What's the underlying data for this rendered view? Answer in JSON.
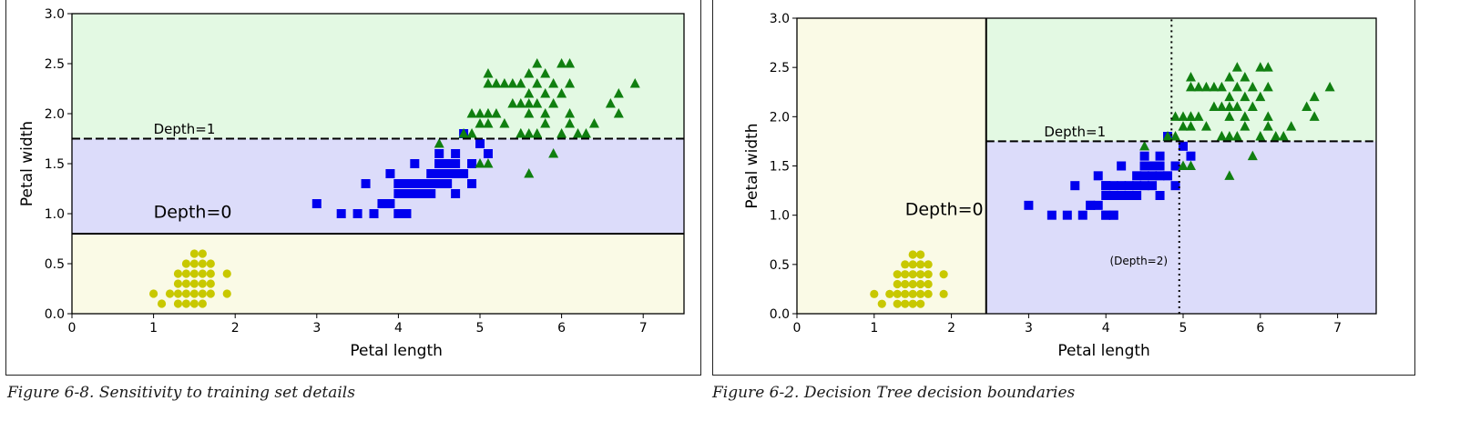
{
  "captions": {
    "left": "Figure 6-8. Sensitivity to training set details",
    "right": "Figure 6-2. Decision Tree decision boundaries"
  },
  "colors": {
    "setosa_region": "#fafae6",
    "versicolor_region": "#dcdcfa",
    "virginica_region": "#e3f9e3",
    "setosa_marker": "#c8c800",
    "versicolor_marker": "#0000ee",
    "virginica_marker": "#107f10"
  },
  "chart_data": [
    {
      "type": "scatter",
      "xlabel": "Petal length",
      "ylabel": "Petal width",
      "xlim": [
        0,
        7.5
      ],
      "ylim": [
        0,
        3.0
      ],
      "xticks": [
        "0",
        "1",
        "2",
        "3",
        "4",
        "5",
        "6",
        "7"
      ],
      "yticks": [
        "0.0",
        "0.5",
        "1.0",
        "1.5",
        "2.0",
        "2.5",
        "3.0"
      ],
      "grid": false,
      "regions": [
        {
          "class": "setosa",
          "x": [
            0,
            7.5
          ],
          "y": [
            0,
            0.8
          ]
        },
        {
          "class": "versicolor",
          "x": [
            0,
            7.5
          ],
          "y": [
            0.8,
            1.75
          ]
        },
        {
          "class": "virginica",
          "x": [
            0,
            7.5
          ],
          "y": [
            1.75,
            3.0
          ]
        }
      ],
      "boundaries": [
        {
          "orientation": "horizontal",
          "value": 0.8,
          "style": "solid",
          "label": "Depth=0",
          "label_at": [
            1.0,
            0.96
          ],
          "label_size": "large"
        },
        {
          "orientation": "horizontal",
          "value": 1.75,
          "style": "dashed",
          "label": "Depth=1",
          "label_at": [
            1.0,
            1.8
          ],
          "label_size": "small"
        }
      ],
      "series": [
        {
          "class": "setosa",
          "marker": "circle",
          "x": [
            1.0,
            1.1,
            1.2,
            1.3,
            1.3,
            1.4,
            1.4,
            1.4,
            1.5,
            1.5,
            1.5,
            1.6,
            1.6,
            1.7,
            1.7,
            1.3,
            1.4,
            1.5,
            1.6,
            1.7,
            1.9,
            1.9,
            1.4,
            1.5,
            1.6,
            1.7,
            1.6,
            1.3,
            1.5,
            1.6
          ],
          "y": [
            0.2,
            0.1,
            0.2,
            0.2,
            0.3,
            0.2,
            0.3,
            0.1,
            0.2,
            0.1,
            0.3,
            0.2,
            0.4,
            0.2,
            0.3,
            0.4,
            0.4,
            0.4,
            0.3,
            0.5,
            0.2,
            0.4,
            0.5,
            0.5,
            0.5,
            0.4,
            0.6,
            0.1,
            0.6,
            0.1
          ]
        },
        {
          "class": "versicolor",
          "marker": "square",
          "x": [
            3.0,
            3.3,
            3.5,
            3.6,
            3.7,
            3.8,
            3.9,
            3.9,
            4.0,
            4.0,
            4.0,
            4.0,
            4.1,
            4.1,
            4.1,
            4.2,
            4.2,
            4.3,
            4.3,
            4.4,
            4.4,
            4.4,
            4.5,
            4.5,
            4.5,
            4.5,
            4.5,
            4.6,
            4.6,
            4.6,
            4.7,
            4.7,
            4.7,
            4.7,
            4.8,
            4.8,
            4.9,
            4.9,
            5.0,
            5.1,
            4.2,
            4.0,
            3.8,
            4.1
          ],
          "y": [
            1.1,
            1.0,
            1.0,
            1.3,
            1.0,
            1.1,
            1.1,
            1.4,
            1.0,
            1.2,
            1.3,
            1.3,
            1.0,
            1.3,
            1.2,
            1.3,
            1.5,
            1.3,
            1.2,
            1.3,
            1.4,
            1.2,
            1.5,
            1.3,
            1.6,
            1.5,
            1.4,
            1.3,
            1.4,
            1.5,
            1.4,
            1.2,
            1.6,
            1.5,
            1.8,
            1.4,
            1.5,
            1.3,
            1.7,
            1.6,
            1.2,
            1.0,
            1.1,
            1.0
          ]
        },
        {
          "class": "virginica",
          "marker": "triangle",
          "x": [
            4.5,
            4.8,
            4.9,
            5.0,
            5.1,
            5.1,
            5.1,
            5.1,
            5.2,
            5.3,
            5.4,
            5.5,
            5.6,
            5.6,
            5.7,
            5.8,
            5.9,
            6.0,
            6.1,
            6.3,
            6.6,
            6.7,
            6.9,
            5.0,
            5.2,
            5.4,
            5.6,
            5.8,
            6.0,
            6.1,
            5.5,
            5.7,
            5.8,
            5.9,
            6.0,
            6.1,
            5.6,
            5.7,
            5.1,
            4.9,
            5.0,
            5.3,
            5.5,
            5.6,
            6.4,
            6.7,
            5.8,
            6.2,
            5.9,
            5.5,
            5.1,
            6.1,
            5.6,
            5.7
          ],
          "y": [
            1.7,
            1.8,
            1.8,
            2.0,
            2.4,
            2.3,
            1.9,
            1.5,
            2.3,
            2.3,
            2.1,
            2.1,
            2.2,
            1.4,
            2.5,
            2.2,
            2.3,
            2.5,
            2.5,
            1.8,
            2.1,
            2.2,
            2.3,
            1.5,
            2.0,
            2.3,
            2.4,
            2.4,
            1.8,
            2.3,
            2.3,
            2.1,
            2.0,
            2.1,
            2.2,
            1.9,
            2.0,
            2.3,
            2.0,
            2.0,
            1.9,
            1.9,
            1.8,
            1.8,
            1.9,
            2.0,
            1.9,
            1.8,
            1.6,
            1.8,
            2.0,
            2.0,
            2.1,
            1.8
          ]
        }
      ]
    },
    {
      "type": "scatter",
      "xlabel": "Petal length",
      "ylabel": "Petal width",
      "xlim": [
        0,
        7.5
      ],
      "ylim": [
        0,
        3.0
      ],
      "xticks": [
        "0",
        "1",
        "2",
        "3",
        "4",
        "5",
        "6",
        "7"
      ],
      "yticks": [
        "0.0",
        "0.5",
        "1.0",
        "1.5",
        "2.0",
        "2.5",
        "3.0"
      ],
      "grid": false,
      "regions": [
        {
          "class": "setosa",
          "x": [
            0,
            2.45
          ],
          "y": [
            0,
            3.0
          ]
        },
        {
          "class": "versicolor",
          "x": [
            2.45,
            7.5
          ],
          "y": [
            0,
            1.75
          ]
        },
        {
          "class": "virginica",
          "x": [
            2.45,
            7.5
          ],
          "y": [
            1.75,
            3.0
          ]
        }
      ],
      "boundaries": [
        {
          "orientation": "vertical",
          "value": 2.45,
          "range": [
            0,
            3.0
          ],
          "style": "solid",
          "label": "Depth=0",
          "label_at": [
            1.4,
            1.0
          ],
          "label_size": "large"
        },
        {
          "orientation": "horizontal",
          "value": 1.75,
          "range": [
            2.45,
            7.5
          ],
          "style": "dashed",
          "label": "Depth=1",
          "label_at": [
            3.2,
            1.8
          ],
          "label_size": "small"
        },
        {
          "orientation": "vertical",
          "value": 4.95,
          "range": [
            0,
            1.75
          ],
          "style": "dotted",
          "label": "(Depth=2)",
          "label_at": [
            4.05,
            0.5
          ],
          "label_size": "tiny"
        },
        {
          "orientation": "vertical",
          "value": 4.85,
          "range": [
            1.75,
            3.0
          ],
          "style": "dotted"
        }
      ],
      "series": [
        {
          "class": "setosa",
          "marker": "circle",
          "x": [
            1.0,
            1.1,
            1.2,
            1.3,
            1.3,
            1.4,
            1.4,
            1.4,
            1.5,
            1.5,
            1.5,
            1.6,
            1.6,
            1.7,
            1.7,
            1.3,
            1.4,
            1.5,
            1.6,
            1.7,
            1.9,
            1.9,
            1.4,
            1.5,
            1.6,
            1.7,
            1.6,
            1.3,
            1.5,
            1.6
          ],
          "y": [
            0.2,
            0.1,
            0.2,
            0.2,
            0.3,
            0.2,
            0.3,
            0.1,
            0.2,
            0.1,
            0.3,
            0.2,
            0.4,
            0.2,
            0.3,
            0.4,
            0.4,
            0.4,
            0.3,
            0.5,
            0.2,
            0.4,
            0.5,
            0.5,
            0.5,
            0.4,
            0.6,
            0.1,
            0.6,
            0.1
          ]
        },
        {
          "class": "versicolor",
          "marker": "square",
          "x": [
            3.0,
            3.3,
            3.5,
            3.6,
            3.7,
            3.8,
            3.9,
            3.9,
            4.0,
            4.0,
            4.0,
            4.0,
            4.1,
            4.1,
            4.1,
            4.2,
            4.2,
            4.3,
            4.3,
            4.4,
            4.4,
            4.4,
            4.5,
            4.5,
            4.5,
            4.5,
            4.5,
            4.6,
            4.6,
            4.6,
            4.7,
            4.7,
            4.7,
            4.7,
            4.8,
            4.8,
            4.9,
            4.9,
            5.0,
            5.1,
            4.2,
            4.0,
            3.8,
            4.1
          ],
          "y": [
            1.1,
            1.0,
            1.0,
            1.3,
            1.0,
            1.1,
            1.1,
            1.4,
            1.0,
            1.2,
            1.3,
            1.3,
            1.0,
            1.3,
            1.2,
            1.3,
            1.5,
            1.3,
            1.2,
            1.3,
            1.4,
            1.2,
            1.5,
            1.3,
            1.6,
            1.5,
            1.4,
            1.3,
            1.4,
            1.5,
            1.4,
            1.2,
            1.6,
            1.5,
            1.8,
            1.4,
            1.5,
            1.3,
            1.7,
            1.6,
            1.2,
            1.0,
            1.1,
            1.0
          ]
        },
        {
          "class": "virginica",
          "marker": "triangle",
          "x": [
            4.5,
            4.8,
            4.9,
            5.0,
            5.1,
            5.1,
            5.1,
            5.1,
            5.2,
            5.3,
            5.4,
            5.5,
            5.6,
            5.6,
            5.7,
            5.8,
            5.9,
            6.0,
            6.1,
            6.3,
            6.6,
            6.7,
            6.9,
            5.0,
            5.2,
            5.4,
            5.6,
            5.8,
            6.0,
            6.1,
            5.5,
            5.7,
            5.8,
            5.9,
            6.0,
            6.1,
            5.6,
            5.7,
            5.1,
            4.9,
            5.0,
            5.3,
            5.5,
            5.6,
            6.4,
            6.7,
            5.8,
            6.2,
            5.9,
            5.5,
            5.1,
            6.1,
            5.6,
            5.7
          ],
          "y": [
            1.7,
            1.8,
            1.8,
            2.0,
            2.4,
            2.3,
            1.9,
            1.5,
            2.3,
            2.3,
            2.1,
            2.1,
            2.2,
            1.4,
            2.5,
            2.2,
            2.3,
            2.5,
            2.5,
            1.8,
            2.1,
            2.2,
            2.3,
            1.5,
            2.0,
            2.3,
            2.4,
            2.4,
            1.8,
            2.3,
            2.3,
            2.1,
            2.0,
            2.1,
            2.2,
            1.9,
            2.0,
            2.3,
            2.0,
            2.0,
            1.9,
            1.9,
            1.8,
            1.8,
            1.9,
            2.0,
            1.9,
            1.8,
            1.6,
            1.8,
            2.0,
            2.0,
            2.1,
            1.8
          ]
        }
      ]
    }
  ]
}
